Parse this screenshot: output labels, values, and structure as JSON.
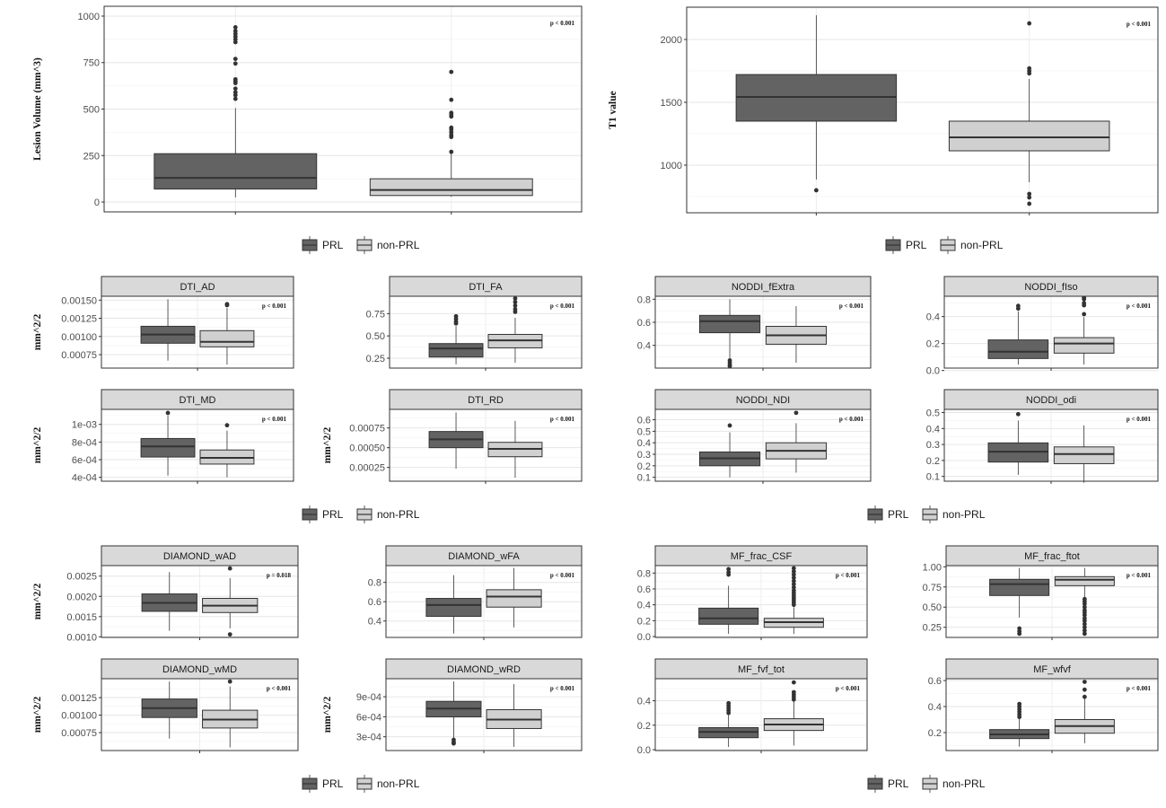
{
  "legend": {
    "items": [
      {
        "label": "PRL",
        "color": "#636363"
      },
      {
        "label": "non-PRL",
        "color": "#d0d0d0"
      }
    ]
  },
  "chart_data": [
    {
      "type": "box",
      "title": "",
      "ylabel": "Lesion Volume (mm^3)",
      "pvalue": "p < 0.001",
      "ylim": [
        -53,
        1053
      ],
      "yticks": [
        0,
        250,
        500,
        750,
        1000
      ],
      "ytick_labels": [
        "0",
        "250",
        "500",
        "750",
        "1000"
      ],
      "groups": [
        {
          "name": "PRL",
          "min": 25,
          "q1": 70,
          "median": 130,
          "q3": 260,
          "max": 505,
          "outliers": [
            555,
            575,
            590,
            610,
            640,
            650,
            660,
            745,
            770,
            860,
            875,
            890,
            905,
            920,
            940
          ]
        },
        {
          "name": "non-PRL",
          "min": 28,
          "q1": 35,
          "median": 65,
          "q3": 125,
          "max": 265,
          "outliers": [
            270,
            350,
            360,
            375,
            390,
            400,
            460,
            470,
            480,
            550,
            700
          ]
        }
      ]
    },
    {
      "type": "box",
      "title": "",
      "ylabel": "T1 value",
      "pvalue": "p < 0.001",
      "ylim": [
        621,
        2257
      ],
      "yticks": [
        1000,
        1500,
        2000
      ],
      "ytick_labels": [
        "1000",
        "1500",
        "2000"
      ],
      "groups": [
        {
          "name": "PRL",
          "min": 886,
          "q1": 1350,
          "median": 1543,
          "q3": 1721,
          "max": 2193,
          "outliers": [
            800
          ]
        },
        {
          "name": "non-PRL",
          "min": 864,
          "q1": 1114,
          "median": 1221,
          "q3": 1350,
          "max": 1686,
          "outliers": [
            693,
            743,
            771,
            1730,
            1750,
            1770,
            2128
          ]
        }
      ]
    },
    {
      "type": "box",
      "title": "DTI_AD",
      "ylabel": "mm^2/2",
      "pvalue": "p < 0.001",
      "ylim": [
        0.000565,
        0.001553
      ],
      "yticks": [
        0.00075,
        0.001,
        0.00125,
        0.0015
      ],
      "ytick_labels": [
        "0.00075",
        "0.00100",
        "0.00125",
        "0.00150"
      ],
      "groups": [
        {
          "name": "PRL",
          "min": 0.000667,
          "q1": 0.000907,
          "median": 0.001026,
          "q3": 0.00114,
          "max": 0.001512,
          "outliers": []
        },
        {
          "name": "non-PRL",
          "min": 0.000614,
          "q1": 0.000857,
          "median": 0.000927,
          "q3": 0.00108,
          "max": 0.00139,
          "outliers": [
            0.00143,
            0.001445
          ]
        }
      ]
    },
    {
      "type": "box",
      "title": "DTI_FA",
      "ylabel": "",
      "pvalue": "p < 0.001",
      "ylim": [
        0.139,
        0.945
      ],
      "yticks": [
        0.25,
        0.5,
        0.75
      ],
      "ytick_labels": [
        "0.25",
        "0.50",
        "0.75"
      ],
      "groups": [
        {
          "name": "PRL",
          "min": 0.18,
          "q1": 0.263,
          "median": 0.36,
          "q3": 0.414,
          "max": 0.61,
          "outliers": [
            0.64,
            0.66,
            0.69,
            0.72
          ]
        },
        {
          "name": "non-PRL",
          "min": 0.2,
          "q1": 0.366,
          "median": 0.45,
          "q3": 0.517,
          "max": 0.705,
          "outliers": [
            0.77,
            0.8,
            0.84,
            0.88,
            0.92
          ]
        }
      ]
    },
    {
      "type": "box",
      "title": "DTI_MD",
      "ylabel": "mm^2/2",
      "pvalue": "p < 0.001",
      "ylim": [
        0.000356,
        0.00117
      ],
      "yticks": [
        0.0004,
        0.0006,
        0.0008,
        0.001
      ],
      "ytick_labels": [
        "4e-04",
        "6e-04",
        "8e-04",
        "1e-03"
      ],
      "groups": [
        {
          "name": "PRL",
          "min": 0.00042,
          "q1": 0.00063,
          "median": 0.00075,
          "q3": 0.00084,
          "max": 0.0011,
          "outliers": [
            0.00113
          ]
        },
        {
          "name": "non-PRL",
          "min": 0.0004,
          "q1": 0.00055,
          "median": 0.00062,
          "q3": 0.00071,
          "max": 0.00093,
          "outliers": [
            0.00099
          ]
        }
      ]
    },
    {
      "type": "box",
      "title": "DTI_RD",
      "ylabel": "mm^2/2",
      "pvalue": "p < 0.001",
      "ylim": [
        7.58e-05,
        0.000985
      ],
      "yticks": [
        0.00025,
        0.0005,
        0.00075
      ],
      "ytick_labels": [
        "0.00025",
        "0.00050",
        "0.00075"
      ],
      "groups": [
        {
          "name": "PRL",
          "min": 0.000235,
          "q1": 0.0005,
          "median": 0.000606,
          "q3": 0.000705,
          "max": 0.000947,
          "outliers": []
        },
        {
          "name": "non-PRL",
          "min": 0.00012,
          "q1": 0.000386,
          "median": 0.000485,
          "q3": 0.000568,
          "max": 0.00084,
          "outliers": []
        }
      ]
    },
    {
      "type": "box",
      "title": "NODDI_fExtra",
      "ylabel": "",
      "pvalue": "p < 0.001",
      "ylim": [
        0.203,
        0.826
      ],
      "yticks": [
        0.4,
        0.6,
        0.8
      ],
      "ytick_labels": [
        "0.4",
        "0.6",
        "0.8"
      ],
      "groups": [
        {
          "name": "PRL",
          "min": 0.29,
          "q1": 0.51,
          "median": 0.61,
          "q3": 0.66,
          "max": 0.8,
          "outliers": [
            0.22,
            0.23,
            0.25,
            0.27
          ]
        },
        {
          "name": "non-PRL",
          "min": 0.25,
          "q1": 0.41,
          "median": 0.487,
          "q3": 0.565,
          "max": 0.74,
          "outliers": []
        }
      ]
    },
    {
      "type": "box",
      "title": "NODDI_fIso",
      "ylabel": "",
      "pvalue": "p < 0.001",
      "ylim": [
        0.018,
        0.551
      ],
      "yticks": [
        0,
        0.2,
        0.4
      ],
      "ytick_labels": [
        "0.0",
        "0.2",
        "0.4"
      ],
      "groups": [
        {
          "name": "PRL",
          "min": 0.044,
          "q1": 0.089,
          "median": 0.14,
          "q3": 0.227,
          "max": 0.44,
          "outliers": [
            0.46,
            0.48
          ]
        },
        {
          "name": "non-PRL",
          "min": 0.044,
          "q1": 0.129,
          "median": 0.2,
          "q3": 0.244,
          "max": 0.396,
          "outliers": [
            0.418,
            0.484,
            0.5,
            0.529,
            0.54
          ]
        }
      ]
    },
    {
      "type": "box",
      "title": "NODDI_NDI",
      "ylabel": "",
      "pvalue": "p < 0.001",
      "ylim": [
        0.066,
        0.69
      ],
      "yticks": [
        0.1,
        0.2,
        0.3,
        0.4,
        0.5,
        0.6
      ],
      "ytick_labels": [
        "0.1",
        "0.2",
        "0.3",
        "0.4",
        "0.5",
        "0.6"
      ],
      "groups": [
        {
          "name": "PRL",
          "min": 0.1,
          "q1": 0.2,
          "median": 0.265,
          "q3": 0.32,
          "max": 0.49,
          "outliers": [
            0.55
          ]
        },
        {
          "name": "non-PRL",
          "min": 0.14,
          "q1": 0.26,
          "median": 0.33,
          "q3": 0.4,
          "max": 0.57,
          "outliers": [
            0.66
          ]
        }
      ]
    },
    {
      "type": "box",
      "title": "NODDI_odi",
      "ylabel": "",
      "pvalue": "p < 0.001",
      "ylim": [
        0.07,
        0.52
      ],
      "yticks": [
        0.1,
        0.2,
        0.3,
        0.4,
        0.5
      ],
      "ytick_labels": [
        "0.1",
        "0.2",
        "0.3",
        "0.4",
        "0.5"
      ],
      "groups": [
        {
          "name": "PRL",
          "min": 0.11,
          "q1": 0.19,
          "median": 0.255,
          "q3": 0.31,
          "max": 0.45,
          "outliers": [
            0.49
          ]
        },
        {
          "name": "non-PRL",
          "min": 0.06,
          "q1": 0.18,
          "median": 0.24,
          "q3": 0.285,
          "max": 0.42,
          "outliers": []
        }
      ]
    },
    {
      "type": "box",
      "title": "DIAMOND_wAD",
      "ylabel": "mm^2/2",
      "pvalue": "p = 0.018",
      "ylim": [
        0.000985,
        0.00276
      ],
      "yticks": [
        0.001,
        0.0015,
        0.002,
        0.0025
      ],
      "ytick_labels": [
        "0.0010",
        "0.0015",
        "0.0020",
        "0.0025"
      ],
      "groups": [
        {
          "name": "PRL",
          "min": 0.00115,
          "q1": 0.00163,
          "median": 0.00184,
          "q3": 0.00206,
          "max": 0.0026,
          "outliers": []
        },
        {
          "name": "non-PRL",
          "min": 0.00121,
          "q1": 0.0016,
          "median": 0.00177,
          "q3": 0.00195,
          "max": 0.00245,
          "outliers": [
            0.00106,
            0.00269
          ]
        }
      ]
    },
    {
      "type": "box",
      "title": "DIAMOND_wFA",
      "ylabel": "",
      "pvalue": "p < 0.001",
      "ylim": [
        0.23,
        0.974
      ],
      "yticks": [
        0.4,
        0.6,
        0.8
      ],
      "ytick_labels": [
        "0.4",
        "0.6",
        "0.8"
      ],
      "groups": [
        {
          "name": "PRL",
          "min": 0.27,
          "q1": 0.448,
          "median": 0.566,
          "q3": 0.634,
          "max": 0.875,
          "outliers": []
        },
        {
          "name": "non-PRL",
          "min": 0.333,
          "q1": 0.544,
          "median": 0.653,
          "q3": 0.724,
          "max": 0.95,
          "outliers": []
        }
      ]
    },
    {
      "type": "box",
      "title": "DIAMOND_wMD",
      "ylabel": "mm^2/2",
      "pvalue": "p < 0.001",
      "ylim": [
        0.000494,
        0.00152
      ],
      "yticks": [
        0.00075,
        0.001,
        0.00125
      ],
      "ytick_labels": [
        "0.00075",
        "0.00100",
        "0.00125"
      ],
      "groups": [
        {
          "name": "PRL",
          "min": 0.000665,
          "q1": 0.000966,
          "median": 0.0011,
          "q3": 0.00123,
          "max": 0.00148,
          "outliers": []
        },
        {
          "name": "non-PRL",
          "min": 0.000538,
          "q1": 0.000816,
          "median": 0.000936,
          "q3": 0.00107,
          "max": 0.00141,
          "outliers": [
            0.00148
          ]
        }
      ]
    },
    {
      "type": "box",
      "title": "DIAMOND_wRD",
      "ylabel": "mm^2/2",
      "pvalue": "p < 0.001",
      "ylim": [
        9.4e-05,
        0.00117
      ],
      "yticks": [
        0.0003,
        0.0006,
        0.0009
      ],
      "ytick_labels": [
        "3e-04",
        "6e-04",
        "9e-04"
      ],
      "groups": [
        {
          "name": "PRL",
          "min": 0.00028,
          "q1": 0.000598,
          "median": 0.000723,
          "q3": 0.000831,
          "max": 0.00113,
          "outliers": [
            0.0002,
            0.00022,
            0.000255
          ]
        },
        {
          "name": "non-PRL",
          "min": 0.00015,
          "q1": 0.000424,
          "median": 0.000558,
          "q3": 0.000706,
          "max": 0.00109,
          "outliers": []
        }
      ]
    },
    {
      "type": "box",
      "title": "MF_frac_CSF",
      "ylabel": "",
      "pvalue": "p < 0.001",
      "ylim": [
        -0.011,
        0.894
      ],
      "yticks": [
        0,
        0.2,
        0.4,
        0.6,
        0.8
      ],
      "ytick_labels": [
        "0.0",
        "0.2",
        "0.4",
        "0.6",
        "0.8"
      ],
      "groups": [
        {
          "name": "PRL",
          "min": 0.034,
          "q1": 0.155,
          "median": 0.23,
          "q3": 0.358,
          "max": 0.64,
          "outliers": [
            0.78,
            0.81,
            0.85
          ]
        },
        {
          "name": "non-PRL",
          "min": 0.034,
          "q1": 0.117,
          "median": 0.181,
          "q3": 0.23,
          "max": 0.37,
          "outliers": [
            0.4,
            0.43,
            0.46,
            0.49,
            0.52,
            0.55,
            0.58,
            0.62,
            0.66,
            0.7,
            0.74,
            0.78,
            0.82,
            0.86
          ]
        }
      ]
    },
    {
      "type": "box",
      "title": "MF_frac_ftot",
      "ylabel": "",
      "pvalue": "p < 0.001",
      "ylim": [
        0.124,
        1.015
      ],
      "yticks": [
        0.25,
        0.5,
        0.75,
        1.0
      ],
      "ytick_labels": [
        "0.25",
        "0.50",
        "0.75",
        "1.00"
      ],
      "groups": [
        {
          "name": "PRL",
          "min": 0.37,
          "q1": 0.644,
          "median": 0.785,
          "q3": 0.845,
          "max": 0.985,
          "outliers": [
            0.17,
            0.2,
            0.235
          ]
        },
        {
          "name": "non-PRL",
          "min": 0.62,
          "q1": 0.766,
          "median": 0.84,
          "q3": 0.878,
          "max": 0.985,
          "outliers": [
            0.17,
            0.21,
            0.25,
            0.29,
            0.33,
            0.36,
            0.4,
            0.43,
            0.46,
            0.5,
            0.54,
            0.57,
            0.6
          ]
        }
      ]
    },
    {
      "type": "box",
      "title": "MF_fvf_tot",
      "ylabel": "",
      "pvalue": "p < 0.001",
      "ylim": [
        -0.007,
        0.58
      ],
      "yticks": [
        0,
        0.2,
        0.4
      ],
      "ytick_labels": [
        "0.0",
        "0.2",
        "0.4"
      ],
      "groups": [
        {
          "name": "PRL",
          "min": 0.022,
          "q1": 0.098,
          "median": 0.145,
          "q3": 0.18,
          "max": 0.29,
          "outliers": [
            0.3,
            0.32,
            0.34,
            0.36,
            0.38
          ]
        },
        {
          "name": "non-PRL",
          "min": 0.034,
          "q1": 0.157,
          "median": 0.206,
          "q3": 0.253,
          "max": 0.4,
          "outliers": [
            0.41,
            0.43,
            0.45,
            0.47,
            0.55
          ]
        }
      ]
    },
    {
      "type": "box",
      "title": "MF_wfvf",
      "ylabel": "",
      "pvalue": "p < 0.001",
      "ylim": [
        0.062,
        0.614
      ],
      "yticks": [
        0.2,
        0.4,
        0.6
      ],
      "ytick_labels": [
        "0.2",
        "0.4",
        "0.6"
      ],
      "groups": [
        {
          "name": "PRL",
          "min": 0.092,
          "q1": 0.154,
          "median": 0.186,
          "q3": 0.223,
          "max": 0.31,
          "outliers": [
            0.32,
            0.34,
            0.36,
            0.38,
            0.4,
            0.42
          ]
        },
        {
          "name": "non-PRL",
          "min": 0.118,
          "q1": 0.195,
          "median": 0.25,
          "q3": 0.3,
          "max": 0.46,
          "outliers": [
            0.475,
            0.53,
            0.59
          ]
        }
      ]
    }
  ]
}
